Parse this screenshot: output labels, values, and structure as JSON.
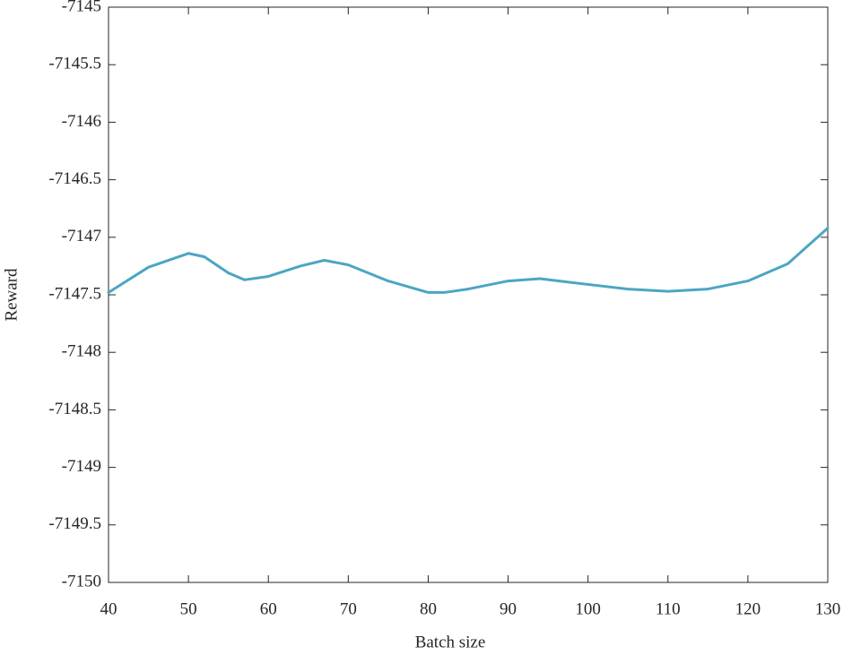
{
  "chart_data": {
    "type": "line",
    "x_label": "Batch size",
    "y_label": "Reward",
    "x": [
      40,
      45,
      50,
      52,
      55,
      57,
      60,
      64,
      67,
      70,
      75,
      80,
      82,
      85,
      90,
      94,
      100,
      105,
      110,
      115,
      120,
      125,
      130
    ],
    "series": [
      {
        "color": "#4ba6c2",
        "values": [
          -7147.48,
          -7147.26,
          -7147.14,
          -7147.17,
          -7147.31,
          -7147.37,
          -7147.34,
          -7147.25,
          -7147.2,
          -7147.24,
          -7147.38,
          -7147.48,
          -7147.48,
          -7147.45,
          -7147.38,
          -7147.36,
          -7147.41,
          -7147.45,
          -7147.47,
          -7147.45,
          -7147.38,
          -7147.23,
          -7146.92
        ]
      }
    ],
    "xlim": [
      40,
      130
    ],
    "xticks": [
      40,
      50,
      60,
      70,
      80,
      90,
      100,
      110,
      120,
      130
    ],
    "ylim": [
      -7150,
      -7145
    ],
    "yticks": [
      -7150,
      -7149.5,
      -7149,
      -7148.5,
      -7148,
      -7147.5,
      -7147,
      -7146.5,
      -7146,
      -7145.5,
      -7145
    ],
    "grid": false
  }
}
